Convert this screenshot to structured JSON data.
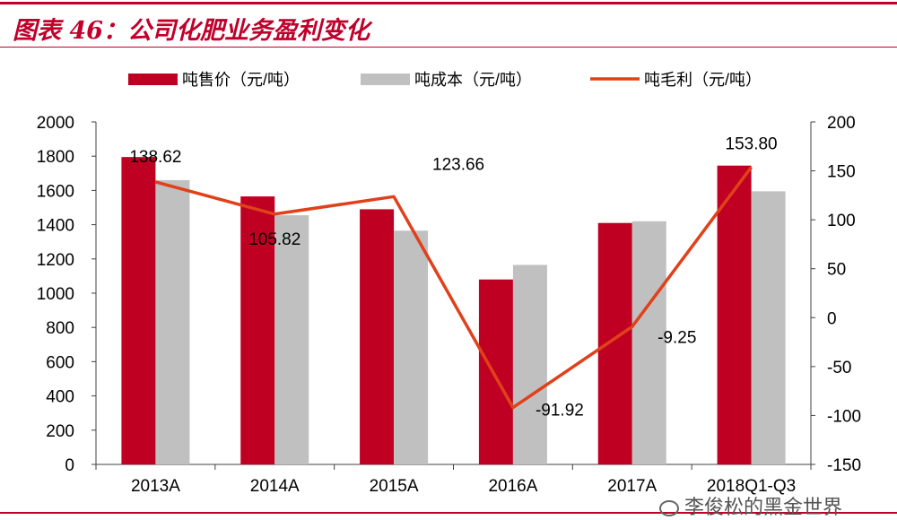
{
  "header": {
    "title": "图表 46：公司化肥业务盈利变化"
  },
  "watermark": {
    "text": "李俊松的黑金世界"
  },
  "colors": {
    "accent": "#c0002b",
    "bar_price": "#c00022",
    "bar_cost": "#c0c0c0",
    "line": "#e0401a",
    "axis": "#404040"
  },
  "chart_data": {
    "type": "bar",
    "categories": [
      "2013A",
      "2014A",
      "2015A",
      "2016A",
      "2017A",
      "2018Q1-Q3"
    ],
    "series": [
      {
        "name": "吨售价（元/吨）",
        "type": "bar",
        "axis": "left",
        "values": [
          1795,
          1565,
          1490,
          1080,
          1410,
          1745
        ]
      },
      {
        "name": "吨成本（元/吨）",
        "type": "bar",
        "axis": "left",
        "values": [
          1660,
          1455,
          1365,
          1165,
          1420,
          1595
        ]
      },
      {
        "name": "吨毛利（元/吨）",
        "type": "line",
        "axis": "right",
        "values": [
          138.62,
          105.82,
          123.66,
          -91.92,
          -9.25,
          153.8
        ]
      }
    ],
    "data_labels": [
      "138.62",
      "105.82",
      "123.66",
      "-91.92",
      "-9.25",
      "153.80"
    ],
    "y_left": {
      "min": 0,
      "max": 2000,
      "step": 200,
      "ticks": [
        "0",
        "200",
        "400",
        "600",
        "800",
        "1000",
        "1200",
        "1400",
        "1600",
        "1800",
        "2000"
      ]
    },
    "y_right": {
      "min": -150,
      "max": 200,
      "step": 50,
      "ticks": [
        "-150",
        "-100",
        "-50",
        "0",
        "50",
        "100",
        "150",
        "200"
      ]
    },
    "legend": {
      "placement": "top"
    },
    "grid": false
  }
}
